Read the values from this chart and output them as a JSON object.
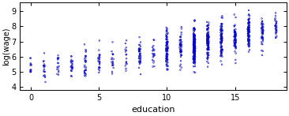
{
  "title": "",
  "xlabel": "education",
  "ylabel": "log(wage)",
  "xlim": [
    -0.8,
    18.8
  ],
  "ylim": [
    3.8,
    9.6
  ],
  "yticks": [
    4,
    5,
    6,
    7,
    8,
    9
  ],
  "xticks": [
    0,
    5,
    10,
    15
  ],
  "bg_color": "#ffffff",
  "fig_bg_color": "#ffffff",
  "point_color": "#0000cc",
  "point_size": 1.5,
  "point_lw": 0.4,
  "seed": 42,
  "education_levels": [
    0,
    1,
    2,
    3,
    4,
    5,
    6,
    7,
    8,
    9,
    10,
    11,
    12,
    13,
    14,
    15,
    16,
    17,
    18
  ],
  "n_points": [
    12,
    18,
    16,
    22,
    28,
    24,
    18,
    16,
    38,
    20,
    90,
    50,
    180,
    100,
    85,
    65,
    90,
    45,
    28
  ],
  "wage_means": [
    5.2,
    5.3,
    5.4,
    5.5,
    5.6,
    5.7,
    5.8,
    5.9,
    6.0,
    6.2,
    6.5,
    6.6,
    6.7,
    6.9,
    7.1,
    7.3,
    7.5,
    7.7,
    7.9
  ],
  "wage_stds": [
    0.45,
    0.5,
    0.5,
    0.55,
    0.55,
    0.5,
    0.5,
    0.55,
    0.6,
    0.6,
    0.65,
    0.6,
    0.65,
    0.65,
    0.65,
    0.6,
    0.6,
    0.55,
    0.55
  ],
  "jitter": 0.07,
  "ylabel_fontsize": 7,
  "xlabel_fontsize": 8,
  "tick_fontsize": 7
}
